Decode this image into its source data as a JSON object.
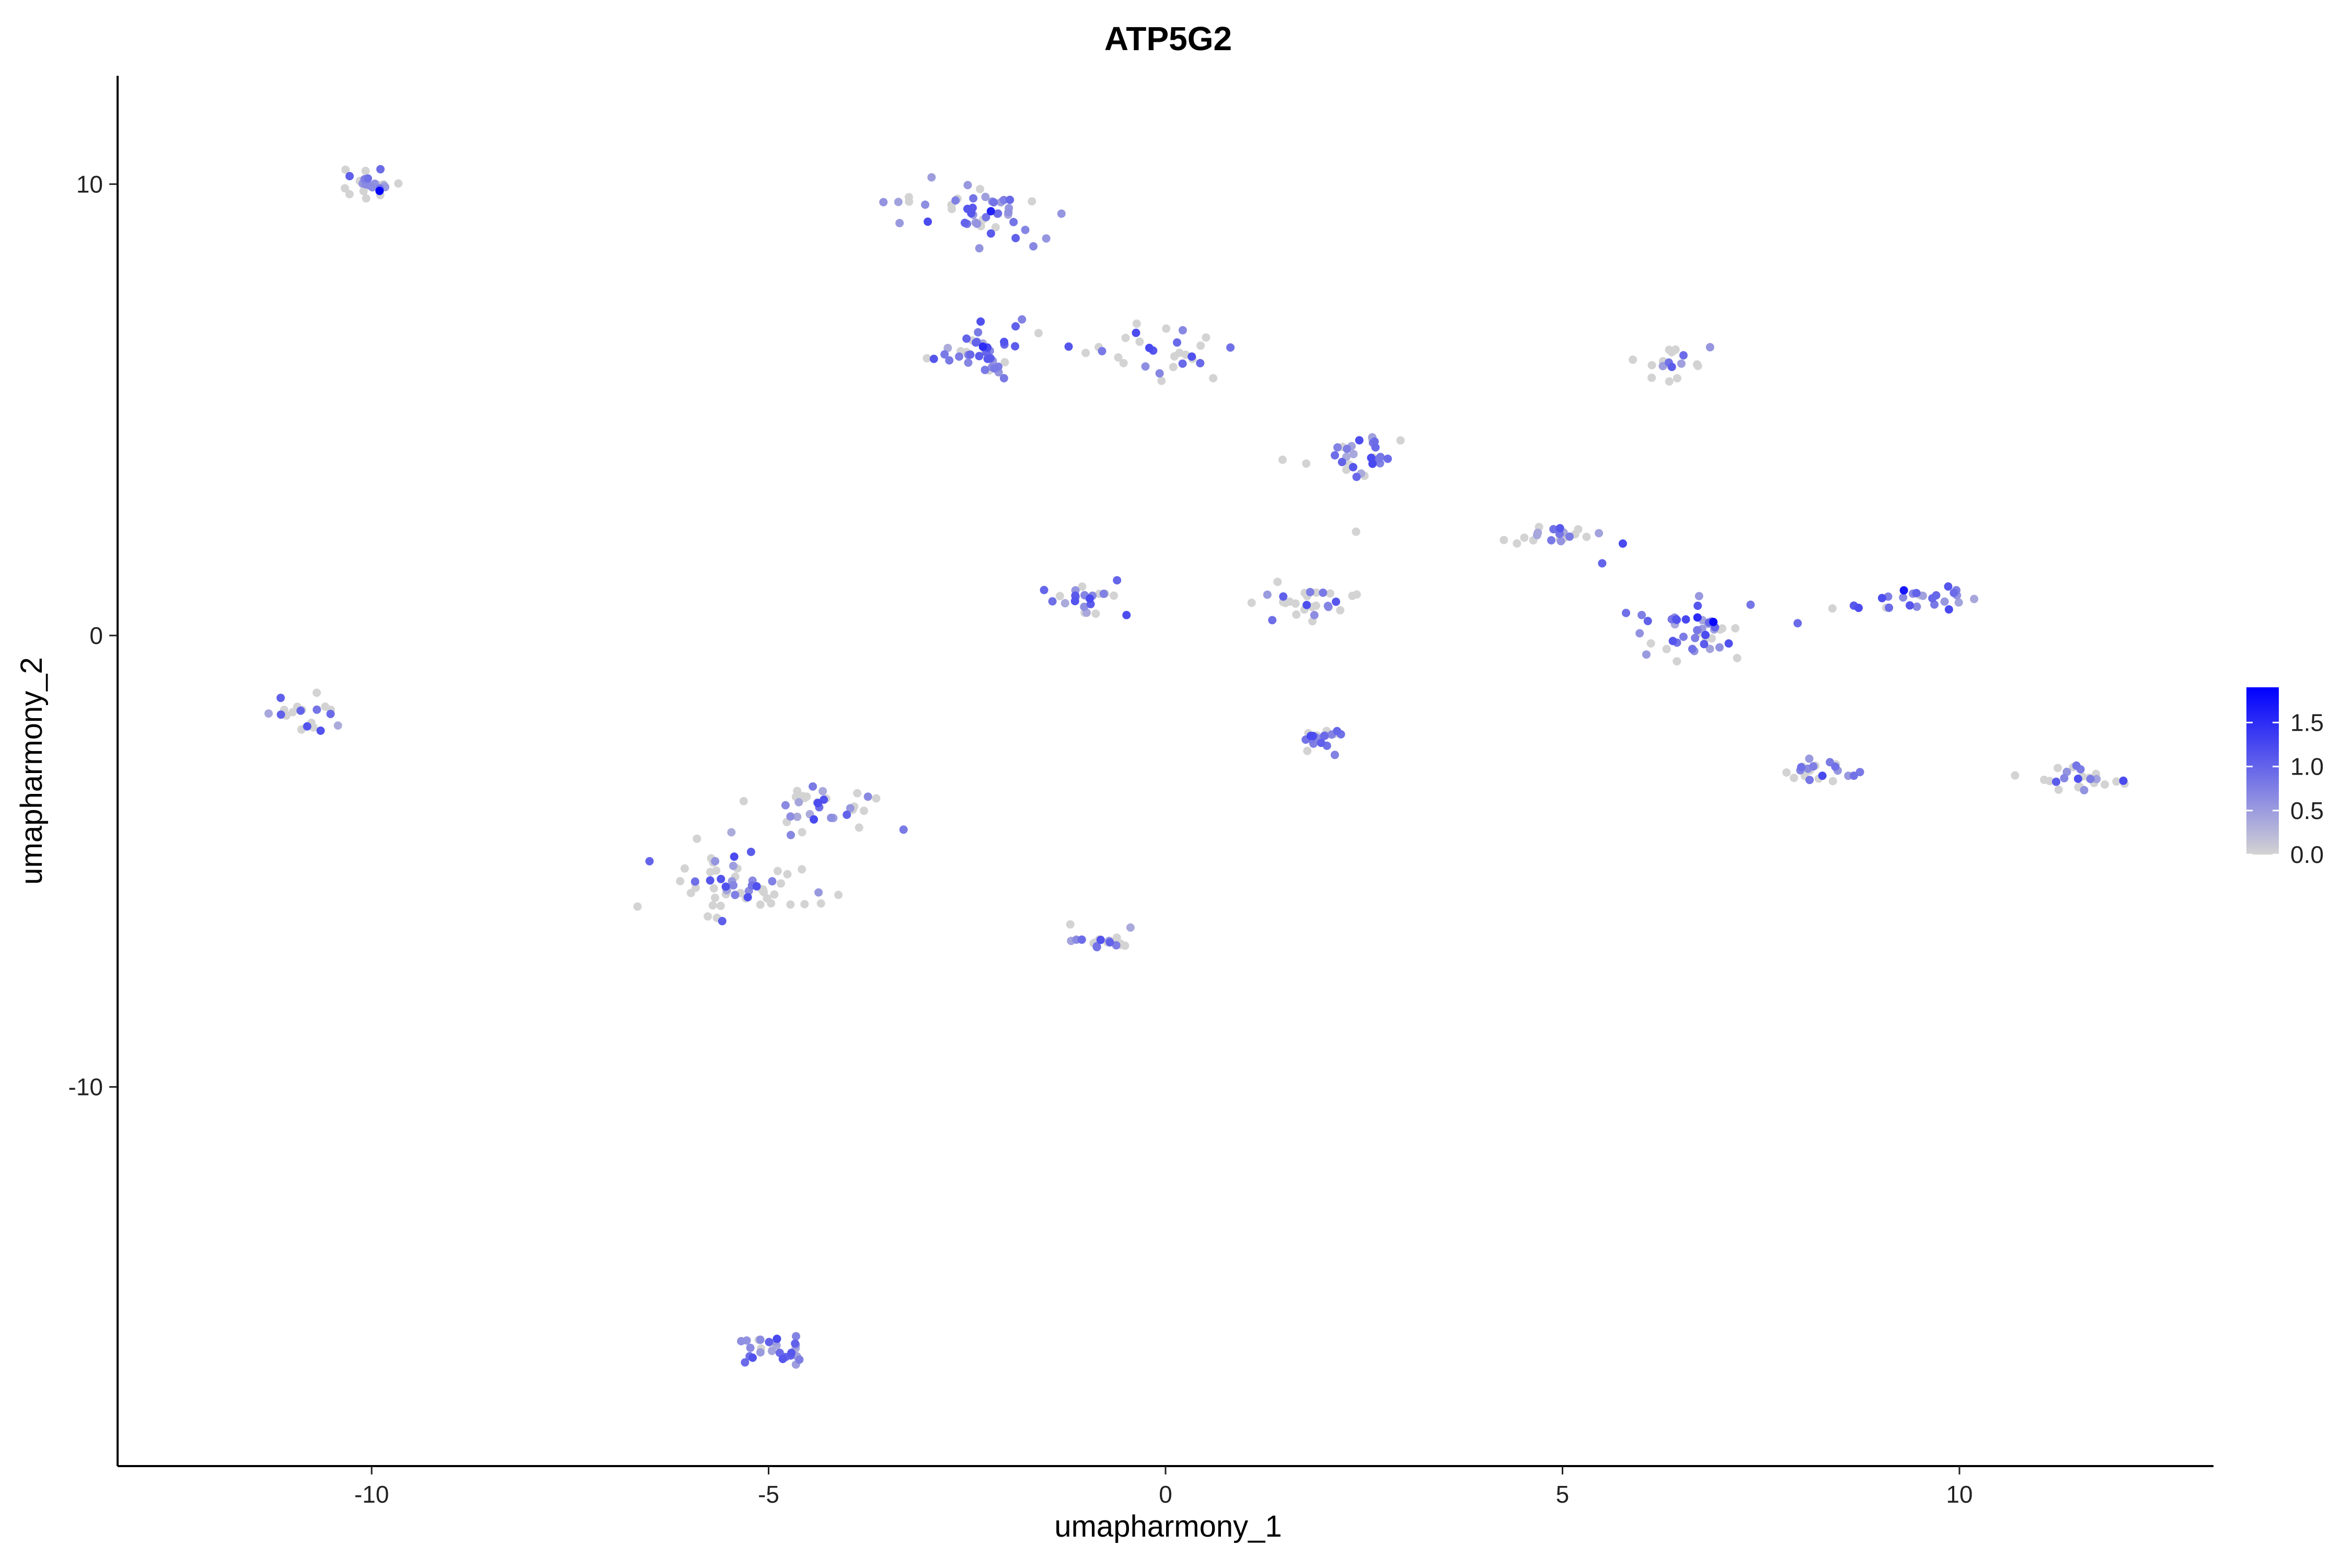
{
  "chart_data": {
    "type": "scatter",
    "title": "ATP5G2",
    "xlabel": "umapharmony_1",
    "ylabel": "umapharmony_2",
    "xlim": [
      -13.2,
      13.2
    ],
    "ylim": [
      -18.4,
      12.4
    ],
    "xticks": [
      -10,
      -5,
      0,
      5,
      10
    ],
    "yticks": [
      -10,
      0,
      10
    ],
    "grid": false,
    "colorbar": {
      "ticks": [
        0.0,
        0.5,
        1.0,
        1.5
      ],
      "tick_labels": [
        "0.0",
        "0.5",
        "1.0",
        "1.5"
      ],
      "min": 0.0,
      "max": 1.9,
      "low_color": "#d3d3d3",
      "high_color": "#0000ff",
      "placement": "right"
    },
    "clusters": [
      {
        "center": [
          -10.0,
          10.0
        ],
        "spread": [
          0.3,
          0.2
        ],
        "n": 24,
        "expr_mean": 0.55,
        "extra_points": [
          [
            -9.9,
            9.85,
            1.9
          ]
        ]
      },
      {
        "center": [
          -10.8,
          -1.8
        ],
        "spread": [
          0.3,
          0.17
        ],
        "n": 20,
        "expr_mean": 0.35
      },
      {
        "center": [
          -2.4,
          9.3
        ],
        "spread": [
          0.45,
          0.32
        ],
        "n": 48,
        "expr_mean": 0.75,
        "extra_points": [
          [
            -2.2,
            9.4,
            1.6
          ]
        ]
      },
      {
        "center": [
          -2.3,
          6.3
        ],
        "spread": [
          0.35,
          0.35
        ],
        "n": 40,
        "expr_mean": 0.8,
        "extra_points": [
          [
            -2.3,
            6.4,
            1.5
          ]
        ]
      },
      {
        "center": [
          -0.1,
          6.3
        ],
        "spread": [
          0.45,
          0.25
        ],
        "n": 28,
        "expr_mean": 0.45
      },
      {
        "center": [
          -1.0,
          0.8
        ],
        "spread": [
          0.33,
          0.18
        ],
        "n": 24,
        "expr_mean": 0.55
      },
      {
        "center": [
          2.5,
          3.9
        ],
        "spread": [
          0.28,
          0.25
        ],
        "n": 30,
        "expr_mean": 0.55
      },
      {
        "center": [
          1.9,
          0.7
        ],
        "spread": [
          0.4,
          0.18
        ],
        "n": 28,
        "expr_mean": 0.35
      },
      {
        "center": [
          2.0,
          -2.3
        ],
        "spread": [
          0.18,
          0.18
        ],
        "n": 20,
        "expr_mean": 0.8
      },
      {
        "center": [
          5.0,
          2.2
        ],
        "spread": [
          0.28,
          0.14
        ],
        "n": 22,
        "expr_mean": 0.5
      },
      {
        "center": [
          6.4,
          6.1
        ],
        "spread": [
          0.2,
          0.25
        ],
        "n": 18,
        "expr_mean": 0.5
      },
      {
        "center": [
          6.6,
          0.1
        ],
        "spread": [
          0.4,
          0.3
        ],
        "n": 42,
        "expr_mean": 0.75,
        "extra_points": [
          [
            6.9,
            0.3,
            1.85
          ],
          [
            6.7,
            0.4,
            1.5
          ]
        ]
      },
      {
        "center": [
          9.4,
          0.8
        ],
        "spread": [
          0.3,
          0.15
        ],
        "n": 24,
        "expr_mean": 0.85,
        "extra_points": [
          [
            9.3,
            1.0,
            1.7
          ]
        ]
      },
      {
        "center": [
          8.2,
          -3.0
        ],
        "spread": [
          0.28,
          0.15
        ],
        "n": 22,
        "expr_mean": 0.75
      },
      {
        "center": [
          11.6,
          -3.2
        ],
        "spread": [
          0.32,
          0.17
        ],
        "n": 24,
        "expr_mean": 0.45
      },
      {
        "center": [
          -4.5,
          -3.9
        ],
        "spread": [
          0.38,
          0.3
        ],
        "n": 34,
        "expr_mean": 0.55
      },
      {
        "center": [
          -5.3,
          -5.6
        ],
        "spread": [
          0.45,
          0.35
        ],
        "n": 58,
        "expr_mean": 0.3
      },
      {
        "center": [
          -0.7,
          -6.8
        ],
        "spread": [
          0.25,
          0.15
        ],
        "n": 20,
        "expr_mean": 0.45
      },
      {
        "center": [
          -4.9,
          -15.9
        ],
        "spread": [
          0.25,
          0.2
        ],
        "n": 28,
        "expr_mean": 0.8
      }
    ],
    "outliers": [
      [
        -6.5,
        -5.0,
        1.0
      ],
      [
        -3.3,
        -4.3,
        0.8
      ],
      [
        2.4,
        2.3,
        0.0
      ],
      [
        5.5,
        1.6,
        1.0
      ],
      [
        5.8,
        0.5,
        0.9
      ],
      [
        7.2,
        -0.5,
        0.0
      ],
      [
        10.7,
        -3.1,
        0.0
      ],
      [
        8.4,
        0.6,
        0.0
      ],
      [
        0.6,
        5.7,
        0.0
      ],
      [
        -1.6,
        6.7,
        0.0
      ],
      [
        -0.8,
        6.3,
        0.8
      ],
      [
        -1.2,
        -6.4,
        0.0
      ]
    ]
  }
}
